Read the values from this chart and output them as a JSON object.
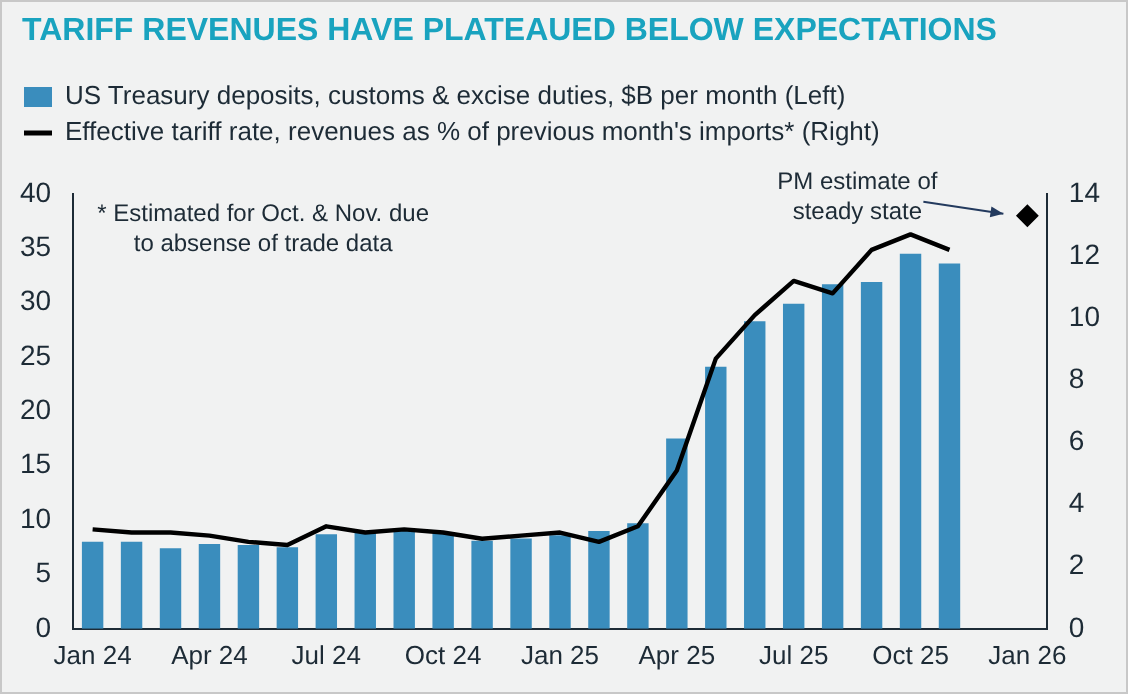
{
  "chart_data": {
    "type": "bar",
    "title": "TARIFF REVENUES HAVE PLATEAUED BELOW EXPECTATIONS",
    "categories": [
      "Jan 24",
      null,
      null,
      "Apr 24",
      null,
      null,
      "Jul 24",
      null,
      null,
      "Oct 24",
      null,
      null,
      "Jan 25",
      null,
      null,
      "Apr 25",
      null,
      null,
      "Jul 25",
      null,
      null,
      "Oct 25",
      null,
      null,
      "Jan 26"
    ],
    "series": [
      {
        "name": "US Treasury deposits, customs & excise duties, $B per month (Left)",
        "color": "#3a8dbd",
        "values": [
          8.0,
          8.0,
          7.4,
          7.8,
          7.7,
          7.5,
          8.7,
          8.9,
          9.0,
          8.9,
          8.1,
          8.3,
          8.6,
          9.0,
          9.7,
          17.5,
          24.1,
          28.3,
          29.9,
          31.7,
          31.9,
          34.5,
          33.6,
          null,
          null
        ]
      },
      {
        "name": "Effective tariff rate, revenues as % of previous month's imports* (Right)",
        "type": "line",
        "axis": "y2",
        "color": "#000000",
        "marker": "none",
        "values": [
          3.2,
          3.1,
          3.1,
          3.0,
          2.8,
          2.7,
          3.3,
          3.1,
          3.2,
          3.1,
          2.9,
          3.0,
          3.1,
          2.8,
          3.3,
          5.1,
          8.7,
          10.1,
          11.2,
          10.8,
          12.2,
          12.7,
          12.2,
          null,
          null
        ]
      },
      {
        "type": "scatter",
        "axis": "y2",
        "color": "#000000",
        "marker": "diamond",
        "x": [
          "Jan 26"
        ],
        "values": [
          13.3
        ]
      }
    ],
    "ylim": [
      0,
      40
    ],
    "yticks": [
      0,
      5,
      10,
      15,
      20,
      25,
      30,
      35,
      40
    ],
    "y2lim": [
      0,
      14
    ],
    "y2ticks": [
      0,
      2,
      4,
      6,
      8,
      10,
      12,
      14
    ],
    "legend": "top left",
    "grid": false,
    "annotations": [
      "* Estimated for Oct. & Nov. due to absense of trade data",
      "PM estimate of steady state"
    ]
  }
}
